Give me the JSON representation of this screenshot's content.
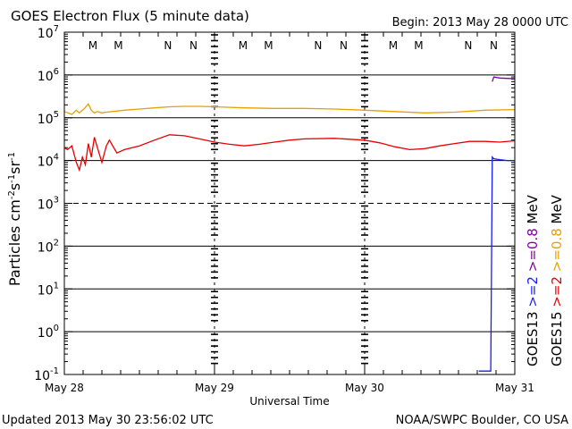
{
  "chart_data": {
    "type": "line",
    "title": "GOES Electron Flux (5 minute data)",
    "begin_label": "Begin: 2013 May 28 0000 UTC",
    "xlabel": "Universal Time",
    "ylabel_parts": [
      "Particles cm",
      "-2",
      "s",
      "-1",
      "sr",
      "-1"
    ],
    "x_tick_labels": [
      "May 28",
      "May 29",
      "May 30",
      "May 31"
    ],
    "xlim_days": [
      0,
      3
    ],
    "ylim_log10": [
      -1,
      7
    ],
    "y_tick_exponents": [
      7,
      6,
      5,
      4,
      3,
      2,
      1,
      0,
      -1
    ],
    "y_tick_base": "10",
    "solid_gridlines_exp": [
      6,
      5,
      4,
      2,
      1,
      0
    ],
    "dashed_gridlines_exp": [
      3
    ],
    "day_dividers": [
      1,
      2
    ],
    "orbit_markers": [
      {
        "day": 0.19,
        "label": "M",
        "color": "#1a1aff"
      },
      {
        "day": 0.36,
        "label": "M",
        "color": "#e60000"
      },
      {
        "day": 0.69,
        "label": "N",
        "color": "#1a1aff"
      },
      {
        "day": 0.86,
        "label": "N",
        "color": "#e60000"
      },
      {
        "day": 1.19,
        "label": "M",
        "color": "#1a1aff"
      },
      {
        "day": 1.36,
        "label": "M",
        "color": "#e60000"
      },
      {
        "day": 1.69,
        "label": "N",
        "color": "#1a1aff"
      },
      {
        "day": 1.86,
        "label": "N",
        "color": "#e60000"
      },
      {
        "day": 2.19,
        "label": "M",
        "color": "#1a1aff"
      },
      {
        "day": 2.36,
        "label": "M",
        "color": "#e60000"
      },
      {
        "day": 2.69,
        "label": "N",
        "color": "#1a1aff"
      },
      {
        "day": 2.86,
        "label": "N",
        "color": "#e60000"
      }
    ],
    "series": [
      {
        "name": "GOES15 >=0.8 MeV",
        "color": "#e6a000",
        "x": [
          0,
          0.05,
          0.08,
          0.1,
          0.13,
          0.16,
          0.18,
          0.2,
          0.22,
          0.25,
          0.28,
          0.32,
          0.4,
          0.5,
          0.6,
          0.7,
          0.8,
          0.9,
          1.0,
          1.2,
          1.4,
          1.6,
          1.8,
          2.0,
          2.2,
          2.4,
          2.6,
          2.8,
          3.0
        ],
        "y": [
          140000,
          120000,
          150000,
          130000,
          160000,
          210000,
          150000,
          130000,
          140000,
          130000,
          135000,
          140000,
          150000,
          160000,
          170000,
          180000,
          185000,
          185000,
          180000,
          170000,
          165000,
          165000,
          160000,
          150000,
          140000,
          130000,
          135000,
          150000,
          155000
        ]
      },
      {
        "name": "GOES15 >=2 MeV",
        "color": "#e60000",
        "x": [
          0,
          0.02,
          0.05,
          0.08,
          0.1,
          0.12,
          0.14,
          0.16,
          0.18,
          0.2,
          0.22,
          0.25,
          0.28,
          0.3,
          0.35,
          0.4,
          0.5,
          0.6,
          0.7,
          0.8,
          0.9,
          1.0,
          1.1,
          1.2,
          1.3,
          1.4,
          1.5,
          1.6,
          1.8,
          2.0,
          2.1,
          2.2,
          2.3,
          2.4,
          2.5,
          2.6,
          2.7,
          2.8,
          2.9,
          3.0
        ],
        "y": [
          20000,
          18000,
          22000,
          9000,
          6000,
          12000,
          8000,
          25000,
          12000,
          35000,
          20000,
          9000,
          22000,
          30000,
          15000,
          18000,
          22000,
          30000,
          40000,
          38000,
          32000,
          27000,
          24000,
          22000,
          24000,
          27000,
          30000,
          32000,
          33000,
          30000,
          26000,
          21000,
          18000,
          19000,
          22000,
          25000,
          28000,
          28000,
          27000,
          29000
        ]
      },
      {
        "name": "GOES13 >=2 MeV",
        "color": "#1a1aff",
        "x": [
          2.76,
          2.84,
          2.85,
          2.86,
          2.9,
          2.95,
          3.0
        ],
        "y": [
          0.12,
          0.12,
          12000,
          11000,
          10500,
          10000,
          10000
        ]
      },
      {
        "name": "GOES13 >=0.8 MeV",
        "color": "#8000a0",
        "x": [
          2.85,
          2.86,
          2.9,
          2.95,
          3.0
        ],
        "y": [
          700000,
          900000,
          850000,
          830000,
          820000
        ]
      }
    ],
    "right_legend": [
      {
        "satellite": "GOES13",
        "channels": [
          {
            "text": ">=2",
            "color": "#1a1aff"
          },
          {
            "text": ">=0.8",
            "color": "#8000a0"
          }
        ],
        "unit": "MeV"
      },
      {
        "satellite": "GOES15",
        "channels": [
          {
            "text": ">=2",
            "color": "#e60000"
          },
          {
            "text": ">=0.8",
            "color": "#e6a000"
          }
        ],
        "unit": "MeV"
      }
    ]
  },
  "footer": {
    "updated": "Updated 2013 May 30 23:56:02 UTC",
    "credit": "NOAA/SWPC Boulder, CO USA"
  }
}
